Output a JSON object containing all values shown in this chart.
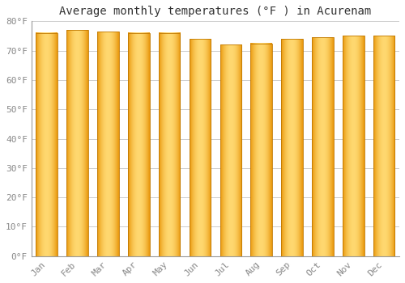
{
  "title": "Average monthly temperatures (°F ) in Acurenam",
  "months": [
    "Jan",
    "Feb",
    "Mar",
    "Apr",
    "May",
    "Jun",
    "Jul",
    "Aug",
    "Sep",
    "Oct",
    "Nov",
    "Dec"
  ],
  "values": [
    76,
    77,
    76.5,
    76,
    76,
    74,
    72,
    72.5,
    74,
    74.5,
    75,
    75
  ],
  "ylim": [
    0,
    80
  ],
  "yticks": [
    0,
    10,
    20,
    30,
    40,
    50,
    60,
    70,
    80
  ],
  "ytick_labels": [
    "0°F",
    "10°F",
    "20°F",
    "30°F",
    "40°F",
    "50°F",
    "60°F",
    "70°F",
    "80°F"
  ],
  "bar_color_edge": "#E8960A",
  "bar_color_center": "#FFD870",
  "background_color": "#FFFFFF",
  "grid_color": "#CCCCCC",
  "title_fontsize": 10,
  "tick_fontsize": 8,
  "title_font_family": "monospace",
  "bar_width": 0.7
}
